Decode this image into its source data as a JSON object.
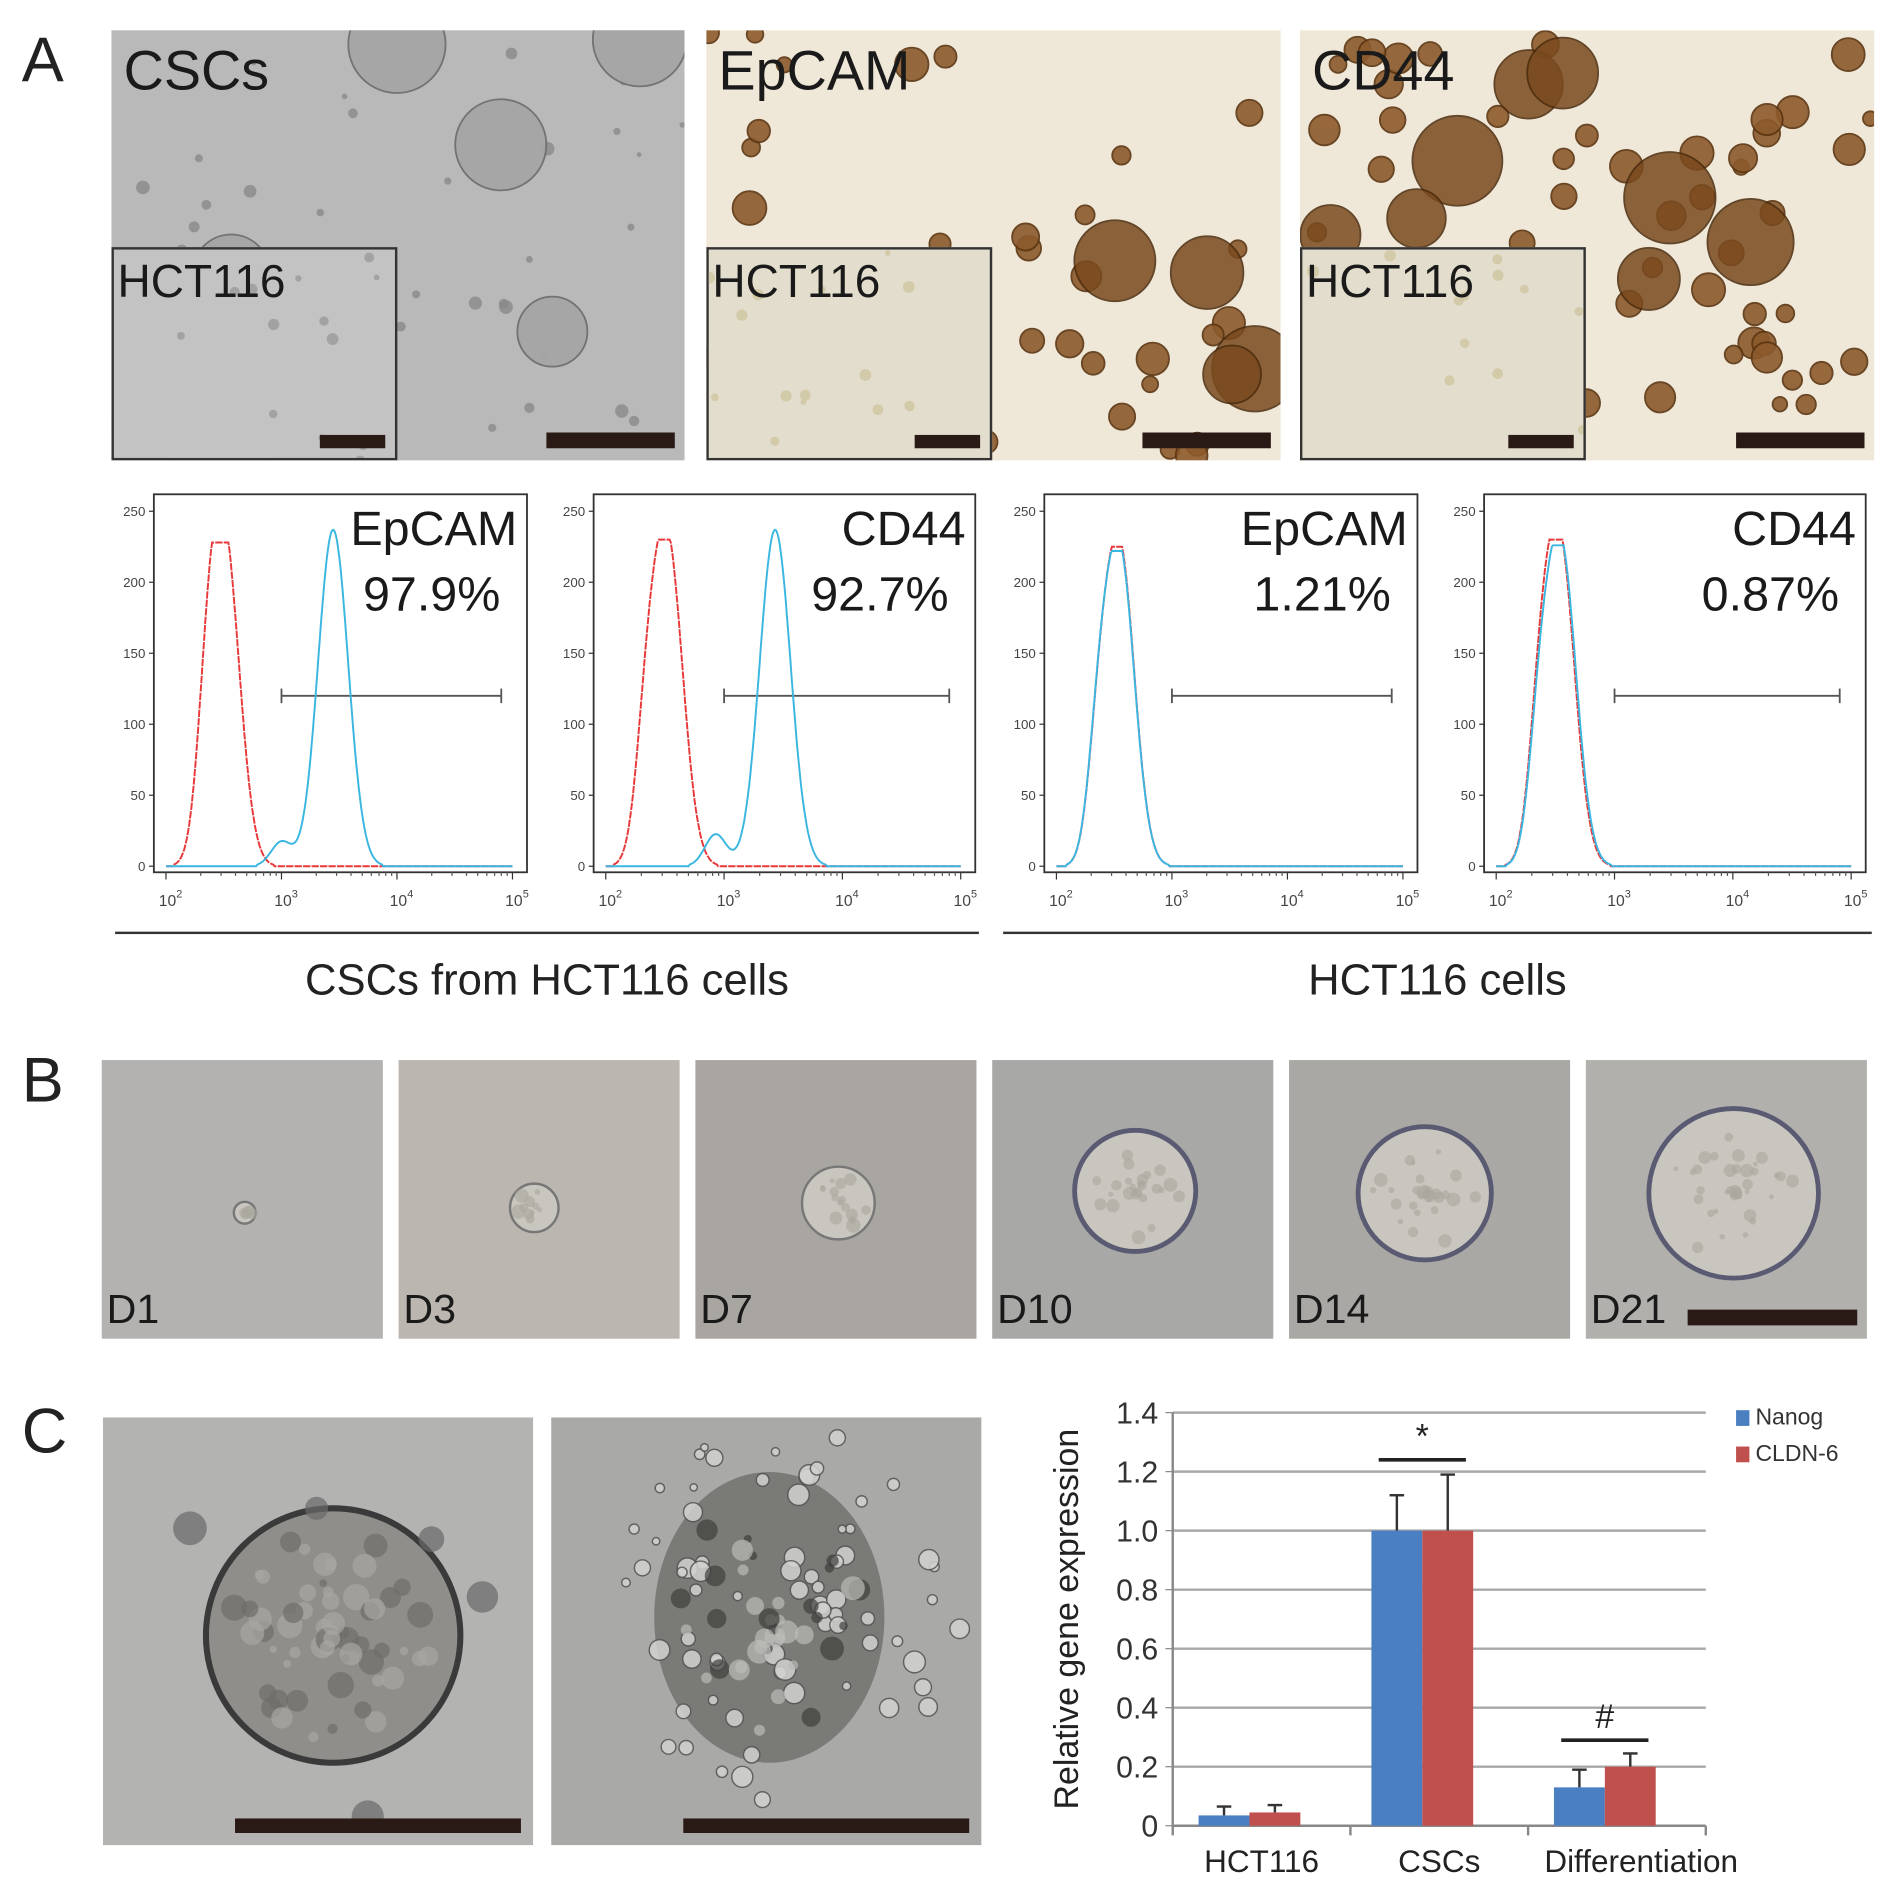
{
  "panels": {
    "A": "A",
    "B": "B",
    "C": "C"
  },
  "panelA": {
    "micrographs": [
      {
        "label": "CSCs",
        "inset_label": "HCT116",
        "style": "brightfield"
      },
      {
        "label": "EpCAM",
        "inset_label": "HCT116",
        "style": "stained"
      },
      {
        "label": "CD44",
        "inset_label": "HCT116",
        "style": "stained"
      }
    ],
    "groups": [
      {
        "label": "CSCs from HCT116 cells"
      },
      {
        "label": "HCT116 cells"
      }
    ]
  },
  "chart_data": [
    {
      "type": "line",
      "title": "EpCAM",
      "annotation": "97.9%",
      "group": "CSCs from HCT116 cells",
      "xscale": "log",
      "xlim": [
        100,
        100000
      ],
      "xticks": [
        "10^2",
        "10^3",
        "10^4",
        "10^5"
      ],
      "ylim": [
        0,
        250
      ],
      "yticks": [
        0,
        50,
        100,
        150,
        200,
        250
      ],
      "gate": [
        1000,
        80000
      ],
      "gate_level": 120,
      "series": [
        {
          "color": "#e8383a",
          "peaks": [
            {
              "x": 320,
              "count": 228
            }
          ],
          "shoulders": [
            {
              "x": 230,
              "count": 160
            }
          ]
        },
        {
          "color": "#3ab6e0",
          "peaks": [
            {
              "x": 2800,
              "count": 237
            }
          ],
          "shoulders": [
            {
              "x": 1000,
              "count": 38
            }
          ]
        }
      ]
    },
    {
      "type": "line",
      "title": "CD44",
      "annotation": "92.7%",
      "group": "CSCs from HCT116 cells",
      "xscale": "log",
      "xlim": [
        100,
        100000
      ],
      "xticks": [
        "10^2",
        "10^3",
        "10^4",
        "10^5"
      ],
      "ylim": [
        0,
        250
      ],
      "yticks": [
        0,
        50,
        100,
        150,
        200,
        250
      ],
      "gate": [
        1000,
        80000
      ],
      "gate_level": 120,
      "series": [
        {
          "color": "#e8383a",
          "peaks": [
            {
              "x": 330,
              "count": 230
            }
          ],
          "shoulders": [
            {
              "x": 220,
              "count": 150
            }
          ]
        },
        {
          "color": "#3ab6e0",
          "peaks": [
            {
              "x": 2700,
              "count": 237
            }
          ],
          "shoulders": [
            {
              "x": 850,
              "count": 50
            }
          ]
        }
      ]
    },
    {
      "type": "line",
      "title": "EpCAM",
      "annotation": "1.21%",
      "group": "HCT116 cells",
      "xscale": "log",
      "xlim": [
        100,
        100000
      ],
      "xticks": [
        "10^2",
        "10^3",
        "10^4",
        "10^5"
      ],
      "ylim": [
        0,
        250
      ],
      "yticks": [
        0,
        50,
        100,
        150,
        200,
        250
      ],
      "gate": [
        1000,
        80000
      ],
      "gate_level": 120,
      "series": [
        {
          "color": "#e8383a",
          "peaks": [
            {
              "x": 350,
              "count": 225
            }
          ],
          "shoulders": [
            {
              "x": 230,
              "count": 140
            }
          ]
        },
        {
          "color": "#3ab6e0",
          "peaks": [
            {
              "x": 350,
              "count": 222
            }
          ],
          "shoulders": [
            {
              "x": 230,
              "count": 145
            }
          ]
        }
      ]
    },
    {
      "type": "line",
      "title": "CD44",
      "annotation": "0.87%",
      "group": "HCT116 cells",
      "xscale": "log",
      "xlim": [
        100,
        100000
      ],
      "xticks": [
        "10^2",
        "10^3",
        "10^4",
        "10^5"
      ],
      "ylim": [
        0,
        250
      ],
      "yticks": [
        0,
        50,
        100,
        150,
        200,
        250
      ],
      "gate": [
        1000,
        80000
      ],
      "gate_level": 120,
      "series": [
        {
          "color": "#e8383a",
          "peaks": [
            {
              "x": 340,
              "count": 230
            }
          ],
          "shoulders": [
            {
              "x": 230,
              "count": 150
            }
          ]
        },
        {
          "color": "#3ab6e0",
          "peaks": [
            {
              "x": 350,
              "count": 226
            }
          ],
          "shoulders": [
            {
              "x": 230,
              "count": 150
            }
          ]
        }
      ]
    },
    {
      "type": "bar",
      "title": "",
      "xlabel": "",
      "ylabel": "Relative gene expression",
      "categories": [
        "HCT116",
        "CSCs",
        "Differentiation"
      ],
      "ylim": [
        0,
        1.4
      ],
      "yticks": [
        "0",
        "0.2",
        "0.4",
        "0.6",
        "0.8",
        "1.0",
        "1.2",
        "1.4"
      ],
      "grid": true,
      "legend": "top-right",
      "series": [
        {
          "name": "Nanog",
          "color": "#4a7fc1",
          "values": [
            0.035,
            1.0,
            0.13
          ],
          "errors": [
            0.03,
            0.12,
            0.06
          ]
        },
        {
          "name": "CLDN-6",
          "color": "#c0504d",
          "values": [
            0.045,
            1.0,
            0.2
          ],
          "errors": [
            0.025,
            0.19,
            0.045
          ]
        }
      ],
      "significance": [
        {
          "category": "CSCs",
          "symbol": "*"
        },
        {
          "category": "Differentiation",
          "symbol": "#"
        }
      ]
    }
  ],
  "panelB": {
    "days": [
      {
        "label": "D1"
      },
      {
        "label": "D3"
      },
      {
        "label": "D7"
      },
      {
        "label": "D10"
      },
      {
        "label": "D14"
      },
      {
        "label": "D21"
      }
    ]
  },
  "panelC": {
    "micrographs": [
      {
        "style": "spheroid"
      },
      {
        "style": "differentiated"
      }
    ]
  }
}
